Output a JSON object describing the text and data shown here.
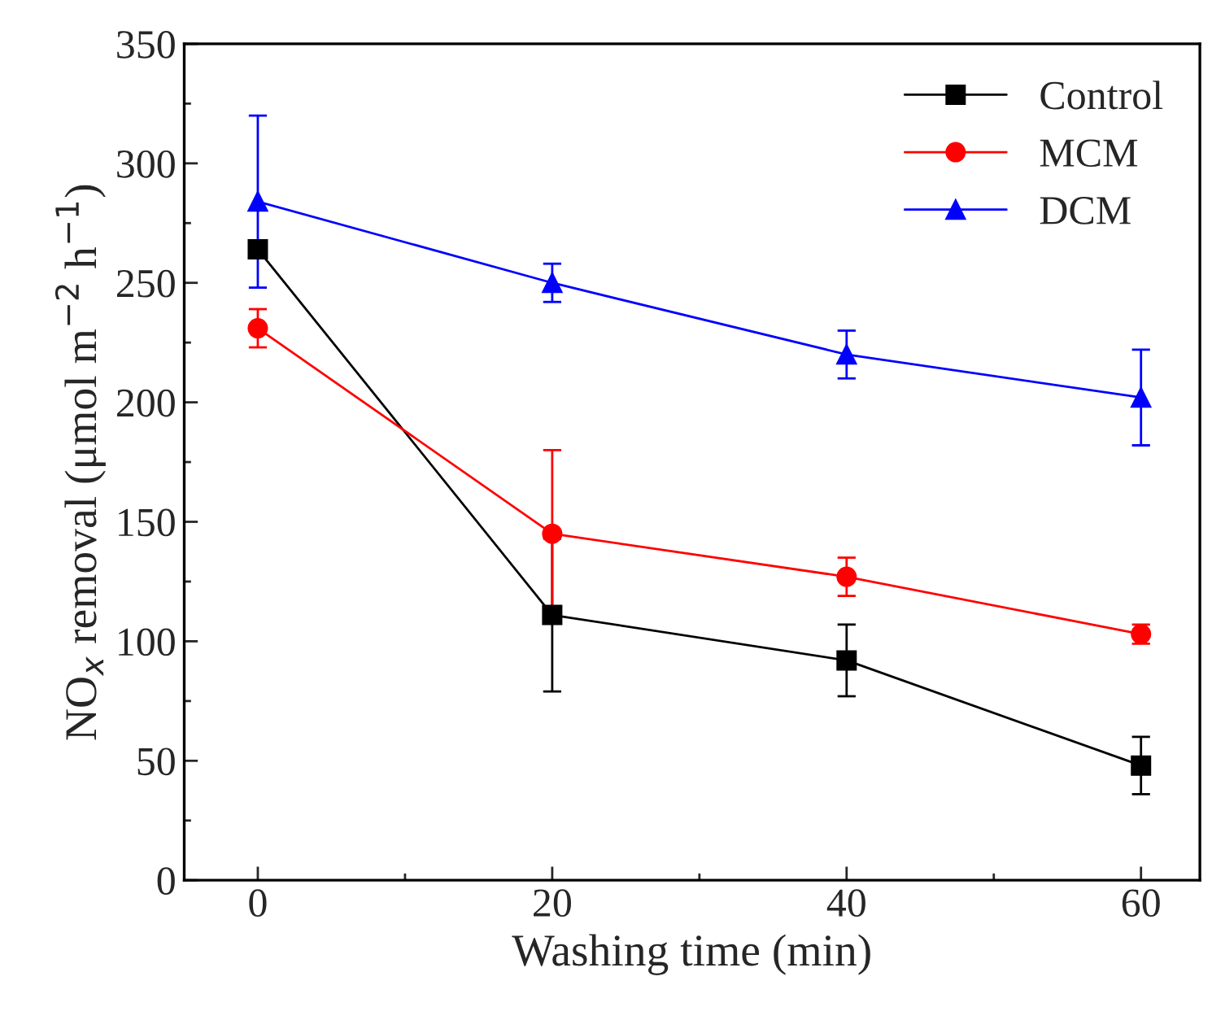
{
  "chart_data": {
    "type": "line",
    "xlabel": "Washing time (min)",
    "ylabel": "NO$_{x}$ removal (μmol m$^{−2}$ h$^{−1}$)",
    "x": [
      0,
      20,
      40,
      60
    ],
    "xlim": [
      -5,
      64
    ],
    "xticks": [
      0,
      20,
      40,
      60
    ],
    "ylim": [
      0,
      350
    ],
    "yticks": [
      0,
      50,
      100,
      150,
      200,
      250,
      300,
      350
    ],
    "legend": "top right",
    "grid": false,
    "line_style": "solid",
    "series": [
      {
        "name": "Control",
        "color": "#000000",
        "marker": "square",
        "values": [
          264,
          111,
          92,
          48
        ],
        "errors": [
          null,
          32,
          15,
          12
        ]
      },
      {
        "name": "MCM",
        "color": "#ff0000",
        "marker": "circle",
        "values": [
          231,
          145,
          127,
          103
        ],
        "errors": [
          8,
          35,
          8,
          4
        ]
      },
      {
        "name": "DCM",
        "color": "#0000ff",
        "marker": "triangle",
        "values": [
          284,
          250,
          220,
          202
        ],
        "errors": [
          36,
          8,
          10,
          20
        ]
      }
    ]
  }
}
